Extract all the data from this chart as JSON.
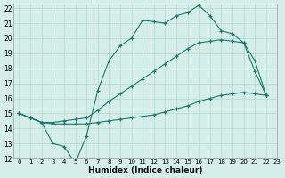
{
  "xlabel": "Humidex (Indice chaleur)",
  "xlim": [
    -0.5,
    23
  ],
  "ylim": [
    12,
    22.3
  ],
  "xticks": [
    0,
    1,
    2,
    3,
    4,
    5,
    6,
    7,
    8,
    9,
    10,
    11,
    12,
    13,
    14,
    15,
    16,
    17,
    18,
    19,
    20,
    21,
    22,
    23
  ],
  "yticks": [
    12,
    13,
    14,
    15,
    16,
    17,
    18,
    19,
    20,
    21,
    22
  ],
  "background_color": "#d5eee9",
  "grid_color": "#b0d8cf",
  "line_color": "#1a7a6a",
  "c1x": [
    0,
    1,
    2,
    3,
    4,
    5,
    6,
    7,
    8,
    9,
    10,
    11,
    12,
    13,
    14,
    15,
    16,
    17,
    18,
    19,
    20,
    21,
    22
  ],
  "c1y": [
    15.0,
    14.7,
    14.4,
    13.0,
    12.8,
    11.7,
    13.5,
    16.5,
    18.5,
    19.5,
    20.0,
    21.2,
    21.1,
    21.0,
    21.5,
    21.7,
    22.2,
    21.5,
    20.5,
    20.3,
    19.7,
    17.8,
    16.2
  ],
  "c2x": [
    0,
    1,
    2,
    3,
    4,
    5,
    6,
    7,
    8,
    9,
    10,
    11,
    12,
    13,
    14,
    15,
    16,
    17,
    18,
    19,
    20,
    21,
    22
  ],
  "c2y": [
    15.0,
    14.7,
    14.4,
    14.4,
    14.5,
    14.6,
    14.7,
    15.2,
    15.8,
    16.3,
    16.8,
    17.3,
    17.8,
    18.3,
    18.8,
    19.3,
    19.7,
    19.8,
    19.9,
    19.8,
    19.7,
    18.5,
    16.2
  ],
  "c3x": [
    0,
    1,
    2,
    3,
    4,
    5,
    6,
    7,
    8,
    9,
    10,
    11,
    12,
    13,
    14,
    15,
    16,
    17,
    18,
    19,
    20,
    21,
    22
  ],
  "c3y": [
    15.0,
    14.7,
    14.4,
    14.3,
    14.3,
    14.3,
    14.3,
    14.4,
    14.5,
    14.6,
    14.7,
    14.8,
    14.9,
    15.1,
    15.3,
    15.5,
    15.8,
    16.0,
    16.2,
    16.3,
    16.4,
    16.3,
    16.2
  ]
}
